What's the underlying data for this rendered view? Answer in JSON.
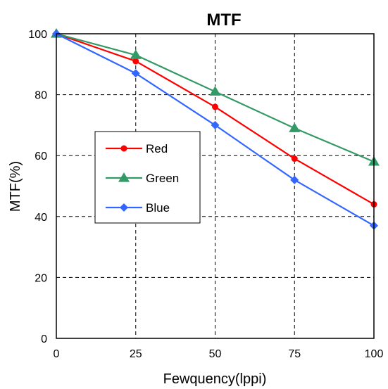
{
  "chart_data": {
    "type": "line",
    "title": "MTF",
    "xlabel": "Fewquency(lppi)",
    "ylabel": "MTF(%)",
    "x": [
      0,
      25,
      50,
      75,
      100
    ],
    "xlim": [
      0,
      100
    ],
    "ylim": [
      0,
      100
    ],
    "xticks": [
      "0",
      "25",
      "50",
      "75",
      "100"
    ],
    "yticks": [
      "0",
      "20",
      "40",
      "60",
      "80",
      "100"
    ],
    "grid": true,
    "grid_style": "dashed",
    "legend_position": "center-left",
    "series": [
      {
        "name": "Red",
        "values": [
          100,
          91,
          76,
          59,
          44
        ],
        "color": "#ff0000",
        "marker": "circle"
      },
      {
        "name": "Green",
        "values": [
          100,
          93,
          81,
          69,
          58
        ],
        "color": "#339966",
        "marker": "triangle"
      },
      {
        "name": "Blue",
        "values": [
          100,
          87,
          70,
          52,
          37
        ],
        "color": "#3366ff",
        "marker": "diamond"
      }
    ]
  }
}
